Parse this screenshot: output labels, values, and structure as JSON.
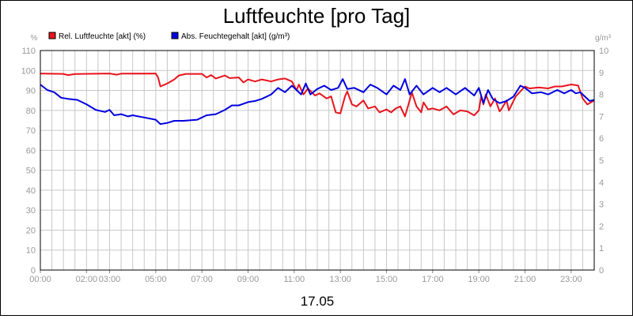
{
  "chart_data": {
    "type": "line",
    "title": "Luftfeuchte [pro Tag]",
    "xlabel": "17.05",
    "y_left_unit": "%",
    "y_right_unit": "g/m³",
    "ylim_left": [
      0,
      110
    ],
    "ylim_right": [
      0,
      10
    ],
    "y_left_ticks": [
      0,
      10,
      20,
      30,
      40,
      50,
      60,
      70,
      80,
      90,
      100,
      110
    ],
    "y_right_ticks": [
      0,
      1,
      2,
      3,
      4,
      5,
      6,
      7,
      8,
      9,
      10
    ],
    "xlim_hours": [
      0,
      24
    ],
    "x_ticks": [
      {
        "h": 0,
        "label": "00:00"
      },
      {
        "h": 2,
        "label": "02:00"
      },
      {
        "h": 3,
        "label": "03:00"
      },
      {
        "h": 5,
        "label": "05:00"
      },
      {
        "h": 7,
        "label": "07:00"
      },
      {
        "h": 9,
        "label": "09:00"
      },
      {
        "h": 11,
        "label": "11:00"
      },
      {
        "h": 13,
        "label": "13:00"
      },
      {
        "h": 15,
        "label": "15:00"
      },
      {
        "h": 17,
        "label": "17:00"
      },
      {
        "h": 19,
        "label": "19:00"
      },
      {
        "h": 21,
        "label": "21:00"
      },
      {
        "h": 23,
        "label": "23:00"
      }
    ],
    "grid": true,
    "legend_position": "top-left",
    "series": [
      {
        "name": "Rel. Luftfeuchte [akt] (%)",
        "color": "#e8141c",
        "axis": "left",
        "points": [
          [
            0.0,
            98.5
          ],
          [
            1.0,
            98.3
          ],
          [
            1.2,
            97.7
          ],
          [
            1.5,
            98.2
          ],
          [
            3.0,
            98.5
          ],
          [
            3.3,
            97.9
          ],
          [
            3.5,
            98.4
          ],
          [
            5.0,
            98.5
          ],
          [
            5.1,
            96.5
          ],
          [
            5.2,
            92.0
          ],
          [
            5.5,
            93.5
          ],
          [
            5.8,
            95.5
          ],
          [
            6.0,
            97.5
          ],
          [
            6.3,
            98.3
          ],
          [
            7.0,
            98.3
          ],
          [
            7.2,
            96.5
          ],
          [
            7.4,
            97.7
          ],
          [
            7.6,
            96.0
          ],
          [
            8.0,
            97.5
          ],
          [
            8.2,
            96.2
          ],
          [
            8.6,
            96.5
          ],
          [
            8.8,
            94.0
          ],
          [
            9.0,
            95.5
          ],
          [
            9.3,
            94.5
          ],
          [
            9.6,
            95.5
          ],
          [
            10.0,
            94.5
          ],
          [
            10.3,
            95.5
          ],
          [
            10.6,
            96.0
          ],
          [
            10.9,
            94.5
          ],
          [
            11.1,
            90.0
          ],
          [
            11.2,
            93.0
          ],
          [
            11.4,
            88.0
          ],
          [
            11.6,
            91.0
          ],
          [
            11.9,
            87.5
          ],
          [
            12.1,
            88.5
          ],
          [
            12.4,
            86.0
          ],
          [
            12.6,
            87.0
          ],
          [
            12.8,
            79.0
          ],
          [
            13.0,
            78.5
          ],
          [
            13.2,
            87.0
          ],
          [
            13.3,
            89.5
          ],
          [
            13.5,
            83.0
          ],
          [
            13.7,
            82.0
          ],
          [
            14.0,
            85.0
          ],
          [
            14.2,
            81.0
          ],
          [
            14.5,
            82.0
          ],
          [
            14.7,
            79.0
          ],
          [
            15.0,
            80.5
          ],
          [
            15.2,
            79.0
          ],
          [
            15.4,
            81.0
          ],
          [
            15.6,
            82.0
          ],
          [
            15.8,
            77.0
          ],
          [
            16.0,
            85.0
          ],
          [
            16.1,
            89.0
          ],
          [
            16.3,
            82.0
          ],
          [
            16.5,
            79.0
          ],
          [
            16.6,
            84.0
          ],
          [
            16.8,
            80.5
          ],
          [
            17.0,
            81.0
          ],
          [
            17.3,
            80.0
          ],
          [
            17.6,
            82.0
          ],
          [
            17.9,
            78.0
          ],
          [
            18.2,
            80.0
          ],
          [
            18.5,
            79.5
          ],
          [
            18.8,
            77.5
          ],
          [
            19.0,
            80.0
          ],
          [
            19.1,
            87.0
          ],
          [
            19.2,
            83.0
          ],
          [
            19.3,
            88.0
          ],
          [
            19.5,
            82.0
          ],
          [
            19.7,
            86.0
          ],
          [
            19.9,
            79.5
          ],
          [
            20.0,
            81.0
          ],
          [
            20.2,
            85.0
          ],
          [
            20.3,
            80.0
          ],
          [
            20.6,
            87.0
          ],
          [
            21.0,
            92.0
          ],
          [
            21.2,
            91.0
          ],
          [
            21.6,
            91.5
          ],
          [
            22.0,
            91.0
          ],
          [
            22.3,
            92.0
          ],
          [
            22.6,
            92.0
          ],
          [
            23.0,
            93.0
          ],
          [
            23.3,
            92.5
          ],
          [
            23.5,
            86.0
          ],
          [
            23.7,
            83.0
          ],
          [
            24.0,
            85.0
          ]
        ]
      },
      {
        "name": "Abs. Feuchtegehalt [akt] (g/m³)",
        "color": "#0000e0",
        "axis": "right",
        "points": [
          [
            0.0,
            8.45
          ],
          [
            0.3,
            8.2
          ],
          [
            0.6,
            8.1
          ],
          [
            0.9,
            7.85
          ],
          [
            1.2,
            7.8
          ],
          [
            1.6,
            7.75
          ],
          [
            2.0,
            7.55
          ],
          [
            2.4,
            7.3
          ],
          [
            2.8,
            7.2
          ],
          [
            3.0,
            7.3
          ],
          [
            3.2,
            7.05
          ],
          [
            3.5,
            7.1
          ],
          [
            3.8,
            7.0
          ],
          [
            4.0,
            7.05
          ],
          [
            4.5,
            6.95
          ],
          [
            5.0,
            6.85
          ],
          [
            5.2,
            6.65
          ],
          [
            5.5,
            6.7
          ],
          [
            5.8,
            6.8
          ],
          [
            6.2,
            6.8
          ],
          [
            6.8,
            6.85
          ],
          [
            7.2,
            7.05
          ],
          [
            7.6,
            7.1
          ],
          [
            8.0,
            7.3
          ],
          [
            8.3,
            7.5
          ],
          [
            8.6,
            7.5
          ],
          [
            9.0,
            7.65
          ],
          [
            9.3,
            7.7
          ],
          [
            9.6,
            7.8
          ],
          [
            10.0,
            8.0
          ],
          [
            10.3,
            8.3
          ],
          [
            10.6,
            8.1
          ],
          [
            10.9,
            8.4
          ],
          [
            11.1,
            8.2
          ],
          [
            11.3,
            8.0
          ],
          [
            11.5,
            8.5
          ],
          [
            11.7,
            8.0
          ],
          [
            12.0,
            8.25
          ],
          [
            12.3,
            8.4
          ],
          [
            12.6,
            8.2
          ],
          [
            12.9,
            8.3
          ],
          [
            13.1,
            8.7
          ],
          [
            13.3,
            8.25
          ],
          [
            13.6,
            8.3
          ],
          [
            14.0,
            8.1
          ],
          [
            14.3,
            8.45
          ],
          [
            14.6,
            8.3
          ],
          [
            15.0,
            8.0
          ],
          [
            15.3,
            8.4
          ],
          [
            15.6,
            8.2
          ],
          [
            15.8,
            8.7
          ],
          [
            16.0,
            8.0
          ],
          [
            16.3,
            8.4
          ],
          [
            16.6,
            8.0
          ],
          [
            17.0,
            8.3
          ],
          [
            17.3,
            8.1
          ],
          [
            17.6,
            8.3
          ],
          [
            18.0,
            8.0
          ],
          [
            18.4,
            8.3
          ],
          [
            18.8,
            7.95
          ],
          [
            19.0,
            8.3
          ],
          [
            19.2,
            7.6
          ],
          [
            19.4,
            8.2
          ],
          [
            19.6,
            7.8
          ],
          [
            19.9,
            7.6
          ],
          [
            20.2,
            7.7
          ],
          [
            20.5,
            7.9
          ],
          [
            20.8,
            8.4
          ],
          [
            21.0,
            8.3
          ],
          [
            21.3,
            8.05
          ],
          [
            21.7,
            8.1
          ],
          [
            22.0,
            8.0
          ],
          [
            22.4,
            8.2
          ],
          [
            22.7,
            8.05
          ],
          [
            23.0,
            8.2
          ],
          [
            23.2,
            8.05
          ],
          [
            23.4,
            8.1
          ],
          [
            23.6,
            7.9
          ],
          [
            23.8,
            7.7
          ],
          [
            24.0,
            7.75
          ]
        ]
      }
    ]
  }
}
